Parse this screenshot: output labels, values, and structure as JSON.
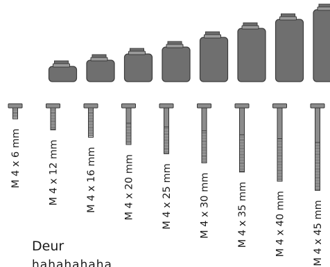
{
  "colors": {
    "container_fill": "#6f6f6f",
    "container_stroke": "#3a3a3a",
    "lid_fill": "#9a9a9a",
    "screw_fill": "#8c8c8c",
    "screw_stroke": "#333333",
    "text": "#1a1a1a"
  },
  "screws": [
    {
      "id": "m4x6",
      "label": "M 4 x 6 mm",
      "length_mm": 6
    },
    {
      "id": "m4x12",
      "label": "M 4 x 12 mm",
      "length_mm": 12
    },
    {
      "id": "m4x16",
      "label": "M 4 x 16 mm",
      "length_mm": 16
    },
    {
      "id": "m4x20",
      "label": "M 4 x 20 mm",
      "length_mm": 20
    },
    {
      "id": "m4x25",
      "label": "M 4 x 25 mm",
      "length_mm": 25
    },
    {
      "id": "m4x30",
      "label": "M 4 x 30 mm",
      "length_mm": 30
    },
    {
      "id": "m4x35",
      "label": "M 4 x 35 mm",
      "length_mm": 35
    },
    {
      "id": "m4x40",
      "label": "M 4 x 40 mm",
      "length_mm": 40
    },
    {
      "id": "m4x45",
      "label": "M 4 x 45 mm",
      "length_mm": 45
    }
  ],
  "door_label": "Deur",
  "cut_text": "hahahahaha"
}
